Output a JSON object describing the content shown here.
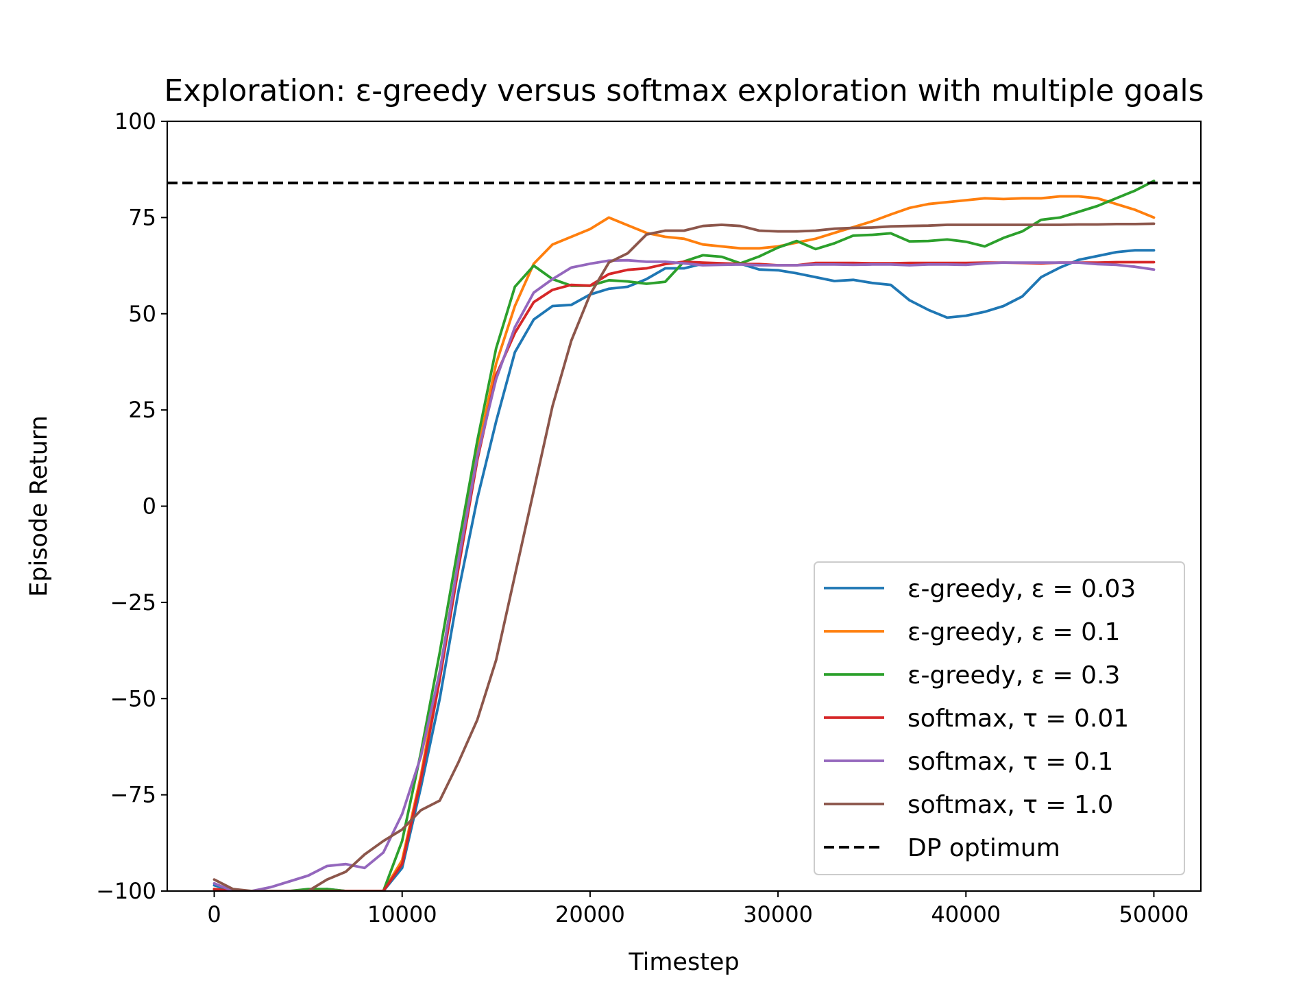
{
  "chart_data": {
    "type": "line",
    "title": "Exploration: ε-greedy versus softmax exploration with multiple goals",
    "xlabel": "Timestep",
    "ylabel": "Episode Return",
    "xlim": [
      -2500,
      52500
    ],
    "ylim": [
      -100,
      100
    ],
    "xticks": [
      0,
      10000,
      20000,
      30000,
      40000,
      50000
    ],
    "xtick_labels": [
      "0",
      "10000",
      "20000",
      "30000",
      "40000",
      "50000"
    ],
    "yticks": [
      100,
      75,
      50,
      25,
      0,
      -25,
      -50,
      -75,
      -100
    ],
    "ytick_labels": [
      "100",
      "75",
      "50",
      "25",
      "0",
      "−25",
      "−50",
      "−75",
      "−100"
    ],
    "grid": false,
    "legend_position": "lower-right",
    "x": [
      0,
      1000,
      2000,
      3000,
      4000,
      5000,
      6000,
      7000,
      8000,
      9000,
      10000,
      11000,
      12000,
      13000,
      14000,
      15000,
      16000,
      17000,
      18000,
      19000,
      20000,
      21000,
      22000,
      23000,
      24000,
      25000,
      26000,
      27000,
      28000,
      29000,
      30000,
      31000,
      32000,
      33000,
      34000,
      35000,
      36000,
      37000,
      38000,
      39000,
      40000,
      41000,
      42000,
      43000,
      44000,
      45000,
      46000,
      47000,
      48000,
      49000,
      50000
    ],
    "series": [
      {
        "name": "ε-greedy, ε = 0.03",
        "color": "#1f77b4",
        "dash": false,
        "values": [
          -98.5,
          -100,
          -100,
          -100,
          -100,
          -100,
          -99.5,
          -100,
          -100,
          -100,
          -94,
          -73,
          -50,
          -22,
          2,
          22,
          40,
          48.5,
          52,
          52.3,
          55,
          56.5,
          57,
          59,
          61.8,
          61.8,
          63,
          63,
          63,
          61.5,
          61.3,
          60.5,
          59.5,
          58.5,
          58.8,
          58,
          57.5,
          53.5,
          51,
          49,
          49.5,
          50.5,
          52,
          54.5,
          59.5,
          62,
          64,
          65,
          66,
          66.5,
          66.5
        ]
      },
      {
        "name": "ε-greedy, ε = 0.1",
        "color": "#ff7f0e",
        "dash": false,
        "values": [
          -99.5,
          -100,
          -100,
          -100,
          -100,
          -100,
          -100,
          -100,
          -100,
          -100,
          -92,
          -70,
          -43,
          -14,
          14,
          37,
          52,
          63,
          68,
          70,
          72,
          75,
          73,
          71,
          70,
          69.5,
          68,
          67.5,
          67,
          67,
          67.5,
          68.5,
          69.5,
          71,
          72.5,
          74,
          75.8,
          77.5,
          78.5,
          79,
          79.5,
          80,
          79.8,
          80,
          80,
          80.5,
          80.5,
          80,
          78.5,
          77,
          75
        ]
      },
      {
        "name": "ε-greedy, ε = 0.3",
        "color": "#2ca02c",
        "dash": false,
        "values": [
          -99.5,
          -100,
          -100,
          -100,
          -100,
          -99.5,
          -99.5,
          -100,
          -100,
          -100,
          -87,
          -64,
          -38,
          -10,
          17,
          41,
          57,
          62.5,
          59,
          57.3,
          57.3,
          58.7,
          58.4,
          57.8,
          58.3,
          63.6,
          65.2,
          64.8,
          63.1,
          64.9,
          67.2,
          68.9,
          66.8,
          68.3,
          70.3,
          70.5,
          70.9,
          68.8,
          68.9,
          69.3,
          68.7,
          67.5,
          69.7,
          71.4,
          74.4,
          75,
          76.5,
          78,
          80,
          82,
          84.5
        ]
      },
      {
        "name": "softmax, τ = 0.01",
        "color": "#d62728",
        "dash": false,
        "values": [
          -99.5,
          -100,
          -100,
          -100,
          -100,
          -100,
          -100,
          -100,
          -100,
          -100,
          -93,
          -71,
          -45,
          -16,
          12,
          34,
          45,
          53,
          56.2,
          57.5,
          57.3,
          60.3,
          61.4,
          61.8,
          62.9,
          63.5,
          63.3,
          63.1,
          62.9,
          62.9,
          62.6,
          62.6,
          63.2,
          63.2,
          63.2,
          63.1,
          63.1,
          63.2,
          63.2,
          63.2,
          63.2,
          63.3,
          63.3,
          63.2,
          63.1,
          63.3,
          63.3,
          63.3,
          63.4,
          63.4,
          63.4
        ]
      },
      {
        "name": "softmax, τ = 0.1",
        "color": "#9467bd",
        "dash": false,
        "values": [
          -98,
          -100,
          -100,
          -99,
          -97.5,
          -96,
          -93.5,
          -93,
          -94,
          -90,
          -80,
          -65,
          -43,
          -14,
          13,
          33,
          46.5,
          55.5,
          59,
          62,
          63,
          63.8,
          63.9,
          63.5,
          63.5,
          63.1,
          62.6,
          62.7,
          62.8,
          62.6,
          62.6,
          62.6,
          62.8,
          62.8,
          62.7,
          62.8,
          62.8,
          62.6,
          62.8,
          62.8,
          62.7,
          63.1,
          63.3,
          63.3,
          63.3,
          63.3,
          63.3,
          62.9,
          62.7,
          62.2,
          61.5
        ]
      },
      {
        "name": "softmax, τ = 1.0",
        "color": "#8c564b",
        "dash": false,
        "values": [
          -97,
          -99.5,
          -100,
          -100,
          -100,
          -100,
          -97,
          -95,
          -90.5,
          -87,
          -84,
          -79,
          -76.5,
          -66.5,
          -55.5,
          -40,
          -18,
          4,
          26,
          43,
          55,
          63.3,
          65.7,
          70.6,
          71.6,
          71.6,
          72.8,
          73.1,
          72.8,
          71.6,
          71.4,
          71.4,
          71.6,
          72.1,
          72.3,
          72.4,
          72.7,
          72.8,
          72.9,
          73.1,
          73.1,
          73.1,
          73.1,
          73.1,
          73.1,
          73.1,
          73.2,
          73.2,
          73.3,
          73.3,
          73.4
        ]
      },
      {
        "name": "DP optimum",
        "color": "#000000",
        "dash": true,
        "constant": 84
      }
    ]
  }
}
